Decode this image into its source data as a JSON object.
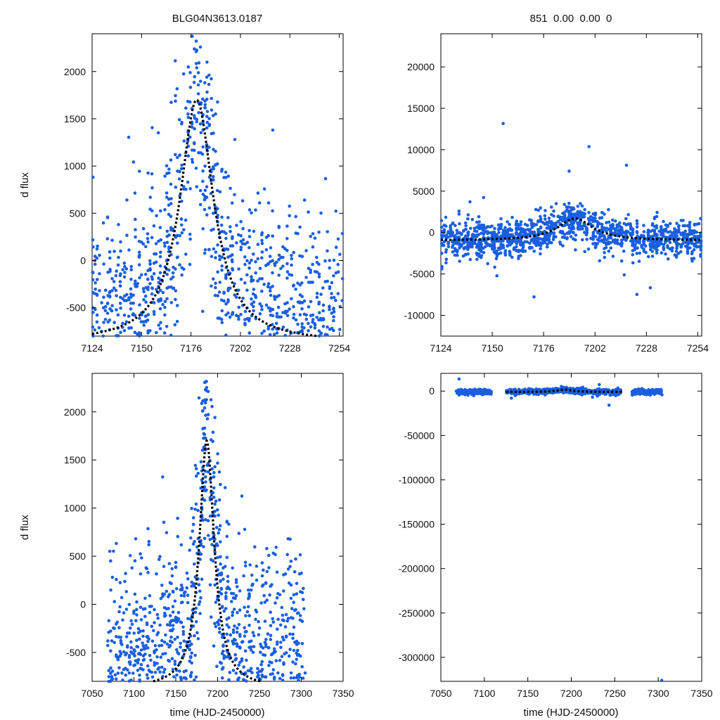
{
  "chart_data": [
    {
      "id": "top-left",
      "type": "scatter",
      "title": "BLG04N3613.0187",
      "xlabel": "",
      "ylabel": "d flux",
      "xlim": [
        7124,
        7256
      ],
      "ylim": [
        -800,
        2400
      ],
      "xticks": [
        7124,
        7150,
        7176,
        7202,
        7228,
        7254
      ],
      "yticks": [
        -500,
        0,
        500,
        1000,
        1500,
        2000
      ],
      "point_color": "#1a5fe0",
      "model_color": "#000000",
      "model": {
        "type": "peak",
        "t0": 7179,
        "peak": 1700,
        "base": -870,
        "tau": 24
      }
    },
    {
      "id": "top-right",
      "type": "scatter",
      "title": "851  0.00  0.00  0",
      "xlabel": "",
      "ylabel": "",
      "xlim": [
        7124,
        7256
      ],
      "ylim": [
        -12500,
        24000
      ],
      "xticks": [
        7124,
        7150,
        7176,
        7202,
        7228,
        7254
      ],
      "yticks": [
        -10000,
        -5000,
        0,
        5000,
        10000,
        15000,
        20000
      ],
      "point_color": "#1a5fe0",
      "model_color": "#000000",
      "model": {
        "type": "peak",
        "t0": 7192,
        "peak": 1700,
        "base": -950,
        "tau": 24
      }
    },
    {
      "id": "bottom-left",
      "type": "scatter",
      "title": "",
      "xlabel": "time (HJD-2450000)",
      "ylabel": "d flux",
      "xlim": [
        7050,
        7350
      ],
      "ylim": [
        -800,
        2400
      ],
      "xticks": [
        7050,
        7100,
        7150,
        7200,
        7250,
        7300,
        7350
      ],
      "yticks": [
        -500,
        0,
        500,
        1000,
        1500,
        2000
      ],
      "point_color": "#1a5fe0",
      "model_color": "#000000",
      "model": {
        "type": "peak",
        "t0": 7187,
        "peak": 1700,
        "base": -870,
        "tau": 24
      }
    },
    {
      "id": "bottom-right",
      "type": "scatter",
      "title": "",
      "xlabel": "time (HJD-2450000)",
      "ylabel": "",
      "xlim": [
        7050,
        7350
      ],
      "ylim": [
        -327000,
        20000
      ],
      "xticks": [
        7050,
        7100,
        7150,
        7200,
        7250,
        7300,
        7350
      ],
      "yticks": [
        -300000,
        -250000,
        -200000,
        -150000,
        -100000,
        -50000,
        0
      ],
      "point_color": "#1a5fe0",
      "model_color": "#000000",
      "model": {
        "type": "peak",
        "t0": 7192,
        "peak": 1700,
        "base": -950,
        "tau": 24
      }
    }
  ]
}
